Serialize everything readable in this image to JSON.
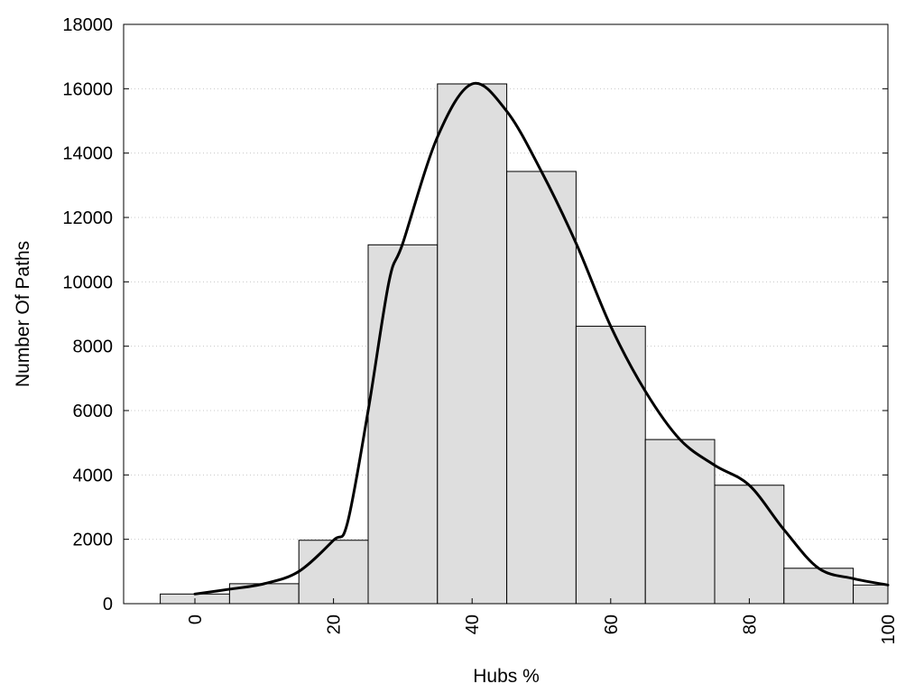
{
  "chart_data": {
    "type": "bar",
    "title": "",
    "xlabel": "Hubs %",
    "ylabel": "Number Of Paths",
    "xlim": [
      -10,
      100
    ],
    "ylim": [
      0,
      18000
    ],
    "x_ticks": [
      0,
      20,
      40,
      60,
      80,
      100
    ],
    "y_ticks": [
      0,
      2000,
      4000,
      6000,
      8000,
      10000,
      12000,
      14000,
      16000,
      18000
    ],
    "grid": "horizontal dotted",
    "bin_width": 10,
    "bars": [
      {
        "x": 0,
        "value": 300
      },
      {
        "x": 10,
        "value": 620
      },
      {
        "x": 20,
        "value": 1970
      },
      {
        "x": 30,
        "value": 11150
      },
      {
        "x": 40,
        "value": 16150
      },
      {
        "x": 50,
        "value": 13430
      },
      {
        "x": 60,
        "value": 8620
      },
      {
        "x": 70,
        "value": 5100
      },
      {
        "x": 80,
        "value": 3680
      },
      {
        "x": 90,
        "value": 1100
      },
      {
        "x": 100,
        "value": 580
      }
    ],
    "curve": [
      [
        0,
        300
      ],
      [
        5,
        450
      ],
      [
        10,
        620
      ],
      [
        15,
        1000
      ],
      [
        20,
        1970
      ],
      [
        22,
        2500
      ],
      [
        25,
        6000
      ],
      [
        28,
        10000
      ],
      [
        30,
        11200
      ],
      [
        35,
        14500
      ],
      [
        40,
        16150
      ],
      [
        45,
        15300
      ],
      [
        50,
        13430
      ],
      [
        55,
        11200
      ],
      [
        60,
        8620
      ],
      [
        65,
        6600
      ],
      [
        70,
        5100
      ],
      [
        75,
        4300
      ],
      [
        80,
        3680
      ],
      [
        85,
        2300
      ],
      [
        90,
        1100
      ],
      [
        95,
        780
      ],
      [
        100,
        580
      ]
    ],
    "colors": {
      "bar_fill": "#dedede",
      "bar_stroke": "#000000",
      "curve": "#000000"
    }
  }
}
